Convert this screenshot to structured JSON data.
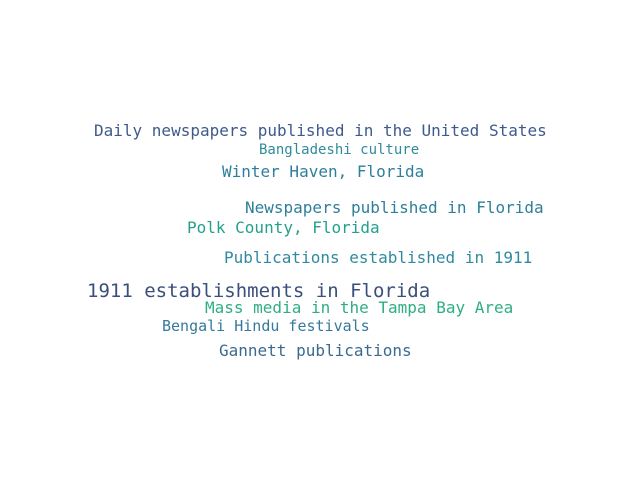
{
  "words": [
    {
      "text": "Daily newspapers published in the United States",
      "color": "#3d5a8c"
    },
    {
      "text": "Bangladeshi culture",
      "color": "#2f8a9a"
    },
    {
      "text": "Winter Haven, Florida",
      "color": "#2e7f9c"
    },
    {
      "text": "Newspapers published in Florida",
      "color": "#2f7f9a"
    },
    {
      "text": "Polk County, Florida",
      "color": "#24a08c"
    },
    {
      "text": "Publications established in 1911",
      "color": "#2f8aa0"
    },
    {
      "text": "1911 establishments in Florida",
      "color": "#3b4e7c"
    },
    {
      "text": "Mass media in the Tampa Bay Area",
      "color": "#2fae83"
    },
    {
      "text": "Bengali Hindu festivals",
      "color": "#357a9c"
    },
    {
      "text": "Gannett publications",
      "color": "#3a6a8f"
    }
  ]
}
